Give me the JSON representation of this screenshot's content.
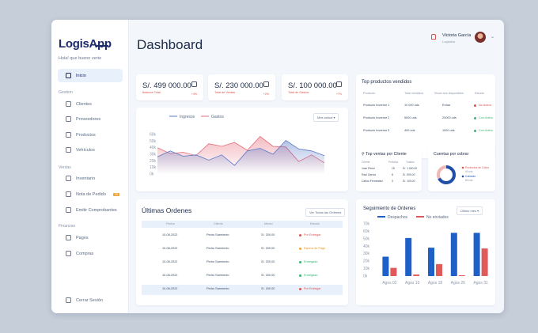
{
  "app": {
    "logo": "LogisApp",
    "greeting": "Hola! que bueno verte"
  },
  "sidebar": {
    "items": [
      {
        "label": "Inicio",
        "icon": "home-icon",
        "active": true
      },
      {
        "section": "Gestion"
      },
      {
        "label": "Clientes",
        "icon": "users-icon"
      },
      {
        "label": "Proveedores",
        "icon": "building-icon"
      },
      {
        "label": "Productos",
        "icon": "box-icon"
      },
      {
        "label": "Vehículos",
        "icon": "truck-icon"
      },
      {
        "section": "Ventas"
      },
      {
        "label": "Inventario",
        "icon": "inventory-icon"
      },
      {
        "label": "Nota de Pedido",
        "icon": "document-icon",
        "badge": "25"
      },
      {
        "label": "Emitir Comprobantes",
        "icon": "receipt-icon"
      },
      {
        "section": "Finanzas"
      },
      {
        "label": "Pagos",
        "icon": "wallet-icon"
      },
      {
        "label": "Compras",
        "icon": "cart-icon"
      }
    ],
    "logout": "Cerrar Sesión"
  },
  "header": {
    "title": "Dashboard",
    "user_name": "Victoria García",
    "user_role": "Logística"
  },
  "kpis": [
    {
      "value": "S/. 499 000.00",
      "label": "Balance Total",
      "pct": "+4%",
      "icon": "chart-icon"
    },
    {
      "value": "S/. 230 000.00",
      "label": "Total de Ventas",
      "pct": "+2%",
      "icon": "bag-icon"
    },
    {
      "value": "S/. 100 000.00",
      "label": "Total de Gastos",
      "pct": "+7%",
      "icon": "money-icon"
    }
  ],
  "income_chart": {
    "legend": [
      "Ingresos",
      "Gastos"
    ],
    "period": "Mes actual",
    "y_ticks": [
      "60k",
      "50k",
      "40k",
      "30k",
      "20k",
      "10k",
      "0k"
    ],
    "colors": {
      "ingresos": "#5a78c8",
      "gastos": "#e56a78"
    }
  },
  "chart_data": [
    {
      "type": "area",
      "ylim": [
        0,
        60000
      ],
      "series": [
        {
          "name": "Ingresos",
          "values": [
            26000,
            35000,
            27000,
            29000,
            21000,
            29000,
            13000,
            35000,
            39000,
            30000,
            51000,
            38000,
            35000,
            28000
          ]
        },
        {
          "name": "Gastos",
          "values": [
            40000,
            31000,
            33000,
            28000,
            46000,
            42000,
            48000,
            36000,
            57000,
            42000,
            41000,
            19000,
            29000,
            17000
          ]
        }
      ]
    },
    {
      "type": "bar",
      "categories": [
        "Agos 02",
        "Agos 10",
        "Agos 18",
        "Agos 26",
        "Agos 31"
      ],
      "ylim": [
        0,
        70000
      ],
      "series": [
        {
          "name": "Despachos",
          "values": [
            26000,
            51000,
            38000,
            58000,
            58000
          ]
        },
        {
          "name": "No enviados",
          "values": [
            11000,
            2000,
            16000,
            1000,
            37000
          ]
        }
      ]
    }
  ],
  "top_products": {
    "title": "Top productos vendidos",
    "headers": [
      "Producto",
      "Total vendidos",
      "Stock aún disponibles",
      "Estado"
    ],
    "rows": [
      {
        "name": "Producto Inventar 1",
        "sold": "10 000 uds",
        "stock": "Entrar",
        "status": "No Activo",
        "color": "#d9534f"
      },
      {
        "name": "Producto Inventar 2",
        "sold": "5000 uds",
        "stock": "20000 uds",
        "status": "Con Activo",
        "color": "#3bb273"
      },
      {
        "name": "Producto Inventar 3",
        "sold": "400 uds",
        "stock": "1000 uds",
        "status": "Con Activo",
        "color": "#3bb273"
      }
    ]
  },
  "top_clients": {
    "title": "Top ventas por Cliente",
    "headers": [
      "Cliente",
      "Pedidos",
      "Totales"
    ],
    "rows": [
      {
        "name": "Jose Perez",
        "orders": "15",
        "total": "S/. 1,000.00"
      },
      {
        "name": "Raul Garcia",
        "orders": "8",
        "total": "S/. 500.00"
      },
      {
        "name": "Carlos Fernandez",
        "orders": "3",
        "total": "S/. 100.00"
      }
    ]
  },
  "receivables": {
    "title": "Cuentas por cobrar",
    "legend": [
      "Productos de Cobro",
      "Cobrado"
    ],
    "values": [
      "40 uds",
      "80 uds"
    ],
    "colors": [
      "#d9534f",
      "#1f4fa8"
    ],
    "fraction_cobrado": 0.67
  },
  "orders": {
    "title": "Últimas Ordenes",
    "view_all": "Ver Todas las Ordenes",
    "headers": [
      "Fecha",
      "Cliente",
      "Monto",
      "Estado"
    ],
    "rows": [
      {
        "date": "10-08-2022",
        "client": "Pedro Sarmiento",
        "amount": "S/. 200.00",
        "status": "Por Entregar",
        "color": "#d9534f"
      },
      {
        "date": "10-08-2022",
        "client": "Pedro Sarmiento",
        "amount": "S/. 200.00",
        "status": "Espera de Pago",
        "color": "#f1a43a"
      },
      {
        "date": "10-08-2022",
        "client": "Pedro Sarmiento",
        "amount": "S/. 200.00",
        "status": "Entregado",
        "color": "#3bb273"
      },
      {
        "date": "10-08-2022",
        "client": "Pedro Sarmiento",
        "amount": "S/. 200.00",
        "status": "Entregado",
        "color": "#3bb273"
      },
      {
        "date": "10-08-2022",
        "client": "Pedro Sarmiento",
        "amount": "S/. 200.00",
        "status": "Por Entregar",
        "color": "#d9534f"
      }
    ]
  },
  "tracking": {
    "title": "Seguimiento de Ordenes",
    "legend": [
      "Despachos",
      "No enviados"
    ],
    "period": "Último mes",
    "y_ticks": [
      "70k",
      "60k",
      "50k",
      "40k",
      "30k",
      "20k",
      "10k",
      "0k"
    ],
    "colors": {
      "despachos": "#1f5fc8",
      "no_enviados": "#e05a5a"
    }
  }
}
